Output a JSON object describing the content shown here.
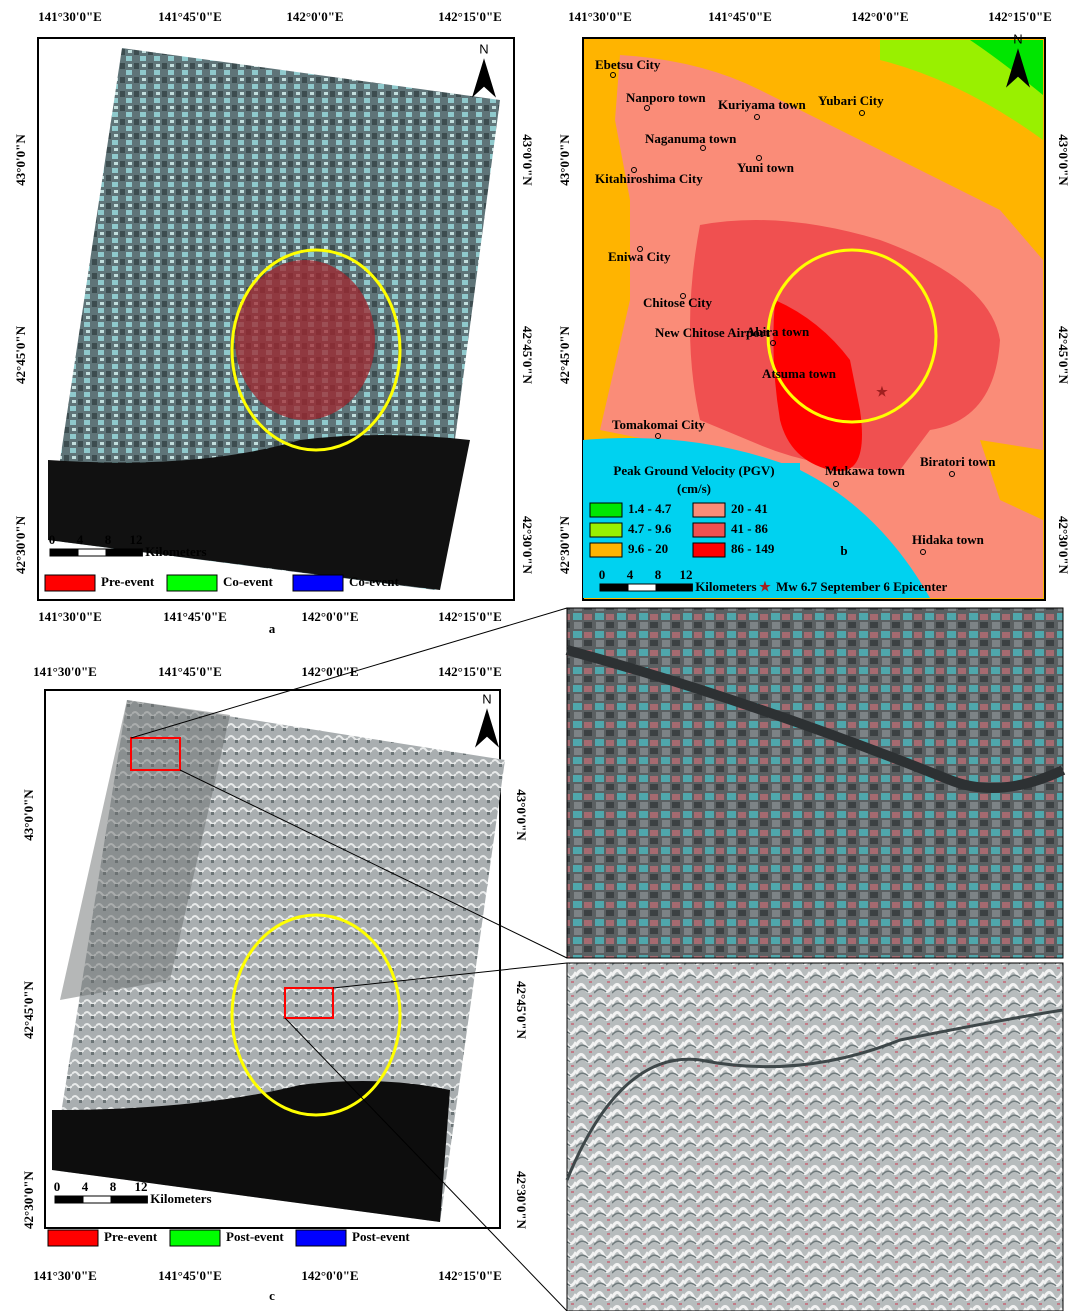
{
  "panels": [
    {
      "label": "a",
      "lon_top": [
        "141°30'0\"E",
        "141°45'0\"E",
        "142°0'0\"E",
        "142°15'0\"E"
      ],
      "lon_bottom": [
        "141°30'0\"E",
        "141°45'0\"E",
        "142°0'0\"E",
        "142°15'0\"E"
      ],
      "lat_left": [
        "43°0'0\"N",
        "42°45'0\"N",
        "42°30'0\"N"
      ],
      "lat_right": [
        "43°0'0\"N",
        "42°45'0\"N",
        "42°30'0\"N"
      ],
      "north": "N",
      "scale": {
        "ticks": [
          "0",
          "4",
          "8",
          "12"
        ],
        "unit": "Kilometers"
      },
      "legend": [
        {
          "name": "Pre-event",
          "color": "#ff0000"
        },
        {
          "name": "Co-event",
          "color": "#00ff00"
        },
        {
          "name": "Co-event",
          "color": "#0000ff"
        }
      ]
    },
    {
      "label": "b",
      "lon_top": [
        "141°30'0\"E",
        "141°45'0\"E",
        "142°0'0\"E",
        "142°15'0\"E"
      ],
      "lat_left": [
        "43°0'0\"N",
        "42°45'0\"N",
        "42°30'0\"N"
      ],
      "lat_right": [
        "43°0'0\"N",
        "42°45'0\"N",
        "42°30'0\"N"
      ],
      "north": "N",
      "scale": {
        "ticks": [
          "0",
          "4",
          "8",
          "12"
        ],
        "unit": "Kilometers"
      },
      "towns": [
        "Ebetsu City",
        "Nanporo town",
        "Kuriyama town",
        "Yubari City",
        "Naganuma town",
        "Yuni town",
        "Kitahiroshima City",
        "Eniwa City",
        "Chitose City",
        "New Chitose Airport",
        "Abira town",
        "Atsuma town",
        "Tomakomai City",
        "Mukawa town",
        "Biratori town",
        "Hidaka town"
      ],
      "pgv_legend": {
        "title": "Peak Ground Velocity (PGV)",
        "unit": "(cm/s)",
        "classes": [
          {
            "label": "1.4 - 4.7",
            "color": "#00e600"
          },
          {
            "label": "4.7 - 9.6",
            "color": "#99f000"
          },
          {
            "label": "9.6 - 20",
            "color": "#ffb400"
          },
          {
            "label": "20 - 41",
            "color": "#fa8c78"
          },
          {
            "label": "41 - 86",
            "color": "#f05050"
          },
          {
            "label": "86 - 149",
            "color": "#ff0000"
          }
        ]
      },
      "epicenter": "Mw 6.7  September 6 Epicenter"
    },
    {
      "label": "c",
      "lon_top": [
        "141°30'0\"E",
        "141°45'0\"E",
        "142°0'0\"E",
        "142°15'0\"E"
      ],
      "lon_bottom": [
        "141°30'0\"E",
        "141°45'0\"E",
        "142°0'0\"E",
        "142°15'0\"E"
      ],
      "lat_left": [
        "43°0'0\"N",
        "42°45'0\"N",
        "42°30'0\"N"
      ],
      "lat_right": [
        "43°0'0\"N",
        "42°45'0\"N",
        "42°30'0\"N"
      ],
      "north": "N",
      "scale": {
        "ticks": [
          "0",
          "4",
          "8",
          "12"
        ],
        "unit": "Kilometers"
      },
      "legend": [
        {
          "name": "Pre-event",
          "color": "#ff0000"
        },
        {
          "name": "Post-event",
          "color": "#00ff00"
        },
        {
          "name": "Post-event",
          "color": "#0000ff"
        }
      ]
    }
  ]
}
